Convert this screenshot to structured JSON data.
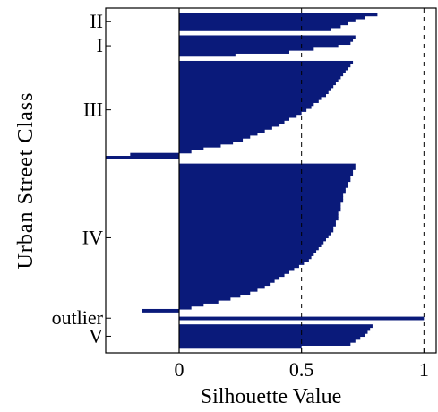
{
  "chart_data": {
    "type": "bar",
    "orientation": "horizontal",
    "xlabel": "Silhouette Value",
    "ylabel": "Urban Street Class",
    "xlim": [
      -0.3,
      1.05
    ],
    "x_ticks": [
      {
        "value": 0,
        "label": "0"
      },
      {
        "value": 0.5,
        "label": "0.5"
      },
      {
        "value": 1,
        "label": "1"
      }
    ],
    "grid": "dashed vertical lines at 0.5 and 1",
    "bar_color": "#0a1a7a",
    "clusters": [
      {
        "label": "II",
        "values": [
          0.81,
          0.76,
          0.72,
          0.69,
          0.66,
          0.62
        ]
      },
      {
        "label": "I",
        "values": [
          0.72,
          0.71,
          0.7,
          0.65,
          0.55,
          0.45,
          0.23
        ]
      },
      {
        "label": "III",
        "values": [
          0.71,
          0.7,
          0.69,
          0.68,
          0.67,
          0.66,
          0.65,
          0.64,
          0.63,
          0.62,
          0.61,
          0.6,
          0.58,
          0.57,
          0.55,
          0.54,
          0.52,
          0.5,
          0.48,
          0.45,
          0.43,
          0.41,
          0.38,
          0.35,
          0.32,
          0.29,
          0.26,
          0.22,
          0.17,
          0.1,
          0.05,
          -0.2,
          -0.3
        ]
      },
      {
        "label": "IV",
        "values": [
          0.72,
          0.72,
          0.71,
          0.71,
          0.7,
          0.7,
          0.69,
          0.69,
          0.68,
          0.68,
          0.67,
          0.67,
          0.67,
          0.66,
          0.66,
          0.66,
          0.65,
          0.65,
          0.65,
          0.64,
          0.64,
          0.63,
          0.63,
          0.62,
          0.61,
          0.6,
          0.59,
          0.58,
          0.57,
          0.56,
          0.55,
          0.54,
          0.53,
          0.51,
          0.49,
          0.47,
          0.45,
          0.43,
          0.41,
          0.39,
          0.37,
          0.35,
          0.32,
          0.29,
          0.25,
          0.21,
          0.16,
          0.1,
          0.05,
          -0.15
        ]
      },
      {
        "label": "outlier",
        "values": [
          1.0
        ]
      },
      {
        "label": "V",
        "values": [
          0.79,
          0.78,
          0.77,
          0.76,
          0.74,
          0.72,
          0.7,
          0.5
        ]
      }
    ]
  }
}
